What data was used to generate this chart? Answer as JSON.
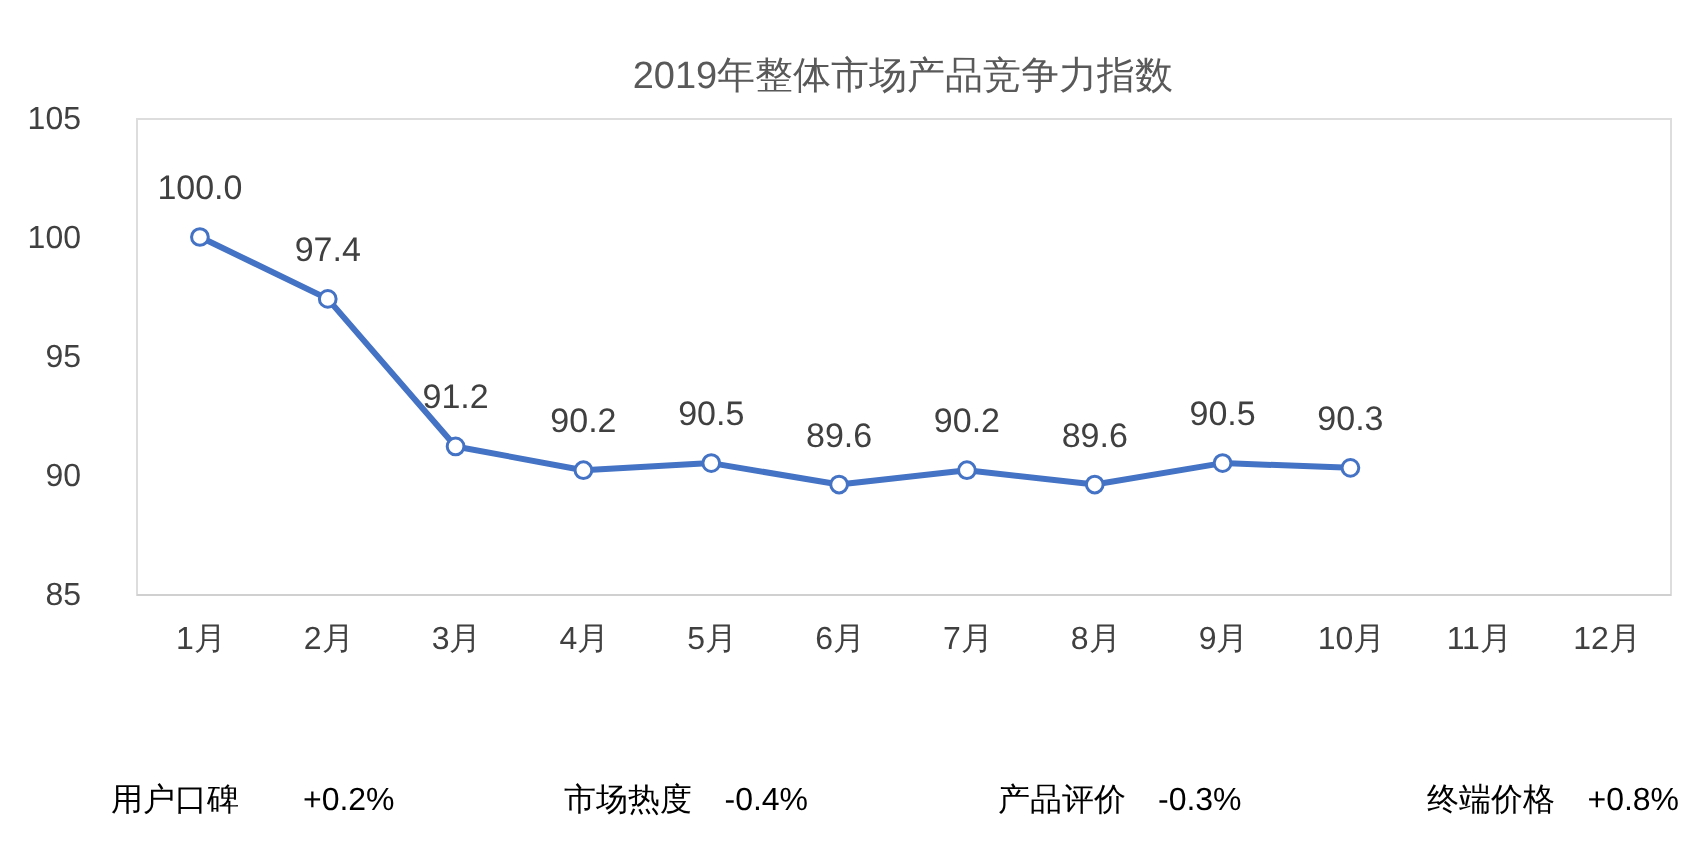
{
  "chart_data": {
    "type": "line",
    "title": "2019年整体市场产品竞争力指数",
    "categories": [
      "1月",
      "2月",
      "3月",
      "4月",
      "5月",
      "6月",
      "7月",
      "8月",
      "9月",
      "10月",
      "11月",
      "12月"
    ],
    "series": [
      {
        "color": "#4472c4",
        "values": [
          100.0,
          97.4,
          91.2,
          90.2,
          90.5,
          89.6,
          90.2,
          89.6,
          90.5,
          90.3,
          null,
          null
        ],
        "value_labels": [
          "100.0",
          "97.4",
          "91.2",
          "90.2",
          "90.5",
          "89.6",
          "90.2",
          "89.6",
          "90.5",
          "90.3",
          null,
          null
        ]
      }
    ],
    "ylim": [
      85,
      105
    ],
    "yticks": [
      85,
      90,
      95,
      100,
      105
    ],
    "grid": false,
    "marker": "circle",
    "line_style": "solid",
    "annotations": [
      "用户口碑　　+0.2%",
      "市场热度　-0.4%",
      "产品评价　-0.3%",
      "终端价格　+0.8%"
    ]
  }
}
